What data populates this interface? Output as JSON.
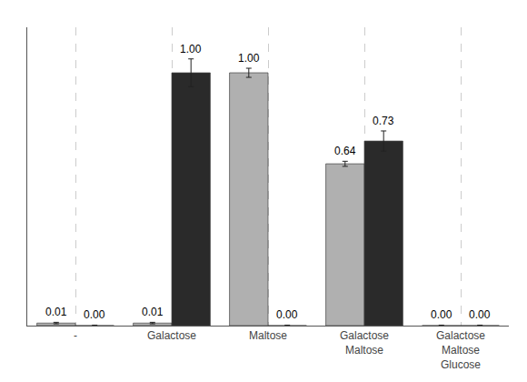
{
  "chart_data": {
    "type": "bar",
    "categories": [
      "-",
      "Galactose",
      "Maltose",
      "Galactose\nMaltose",
      "Galactose\nMaltose\nGlucose"
    ],
    "series": [
      {
        "color": "#b0b0b0",
        "values": [
          0.01,
          0.01,
          1.0,
          0.64,
          0.0
        ],
        "errors": [
          0.003,
          0.003,
          0.018,
          0.01,
          0.002
        ],
        "value_labels": [
          "0.01",
          "0.01",
          "1.00",
          "0.64",
          "0.00"
        ]
      },
      {
        "color": "#2a2a2a",
        "values": [
          0.0,
          1.0,
          0.0,
          0.73,
          0.0
        ],
        "errors": [
          0.002,
          0.055,
          0.002,
          0.04,
          0.002
        ],
        "value_labels": [
          "0.00",
          "1.00",
          "0.00",
          "0.73",
          "0.00"
        ]
      }
    ],
    "ylim": [
      0,
      1.18
    ],
    "grid": true,
    "data_labels": true,
    "tick_labels": "x"
  }
}
